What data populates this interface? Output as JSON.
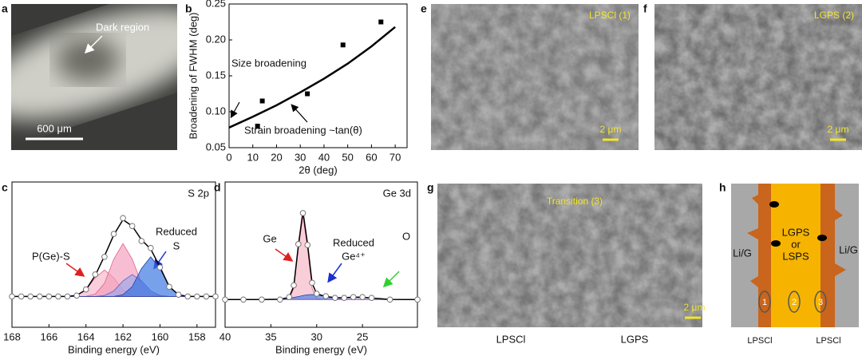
{
  "panel_labels": [
    "a",
    "b",
    "c",
    "d",
    "e",
    "f",
    "g",
    "h"
  ],
  "panel_a": {
    "annotation": "Dark region",
    "scale_bar": "600 μm"
  },
  "panel_e": {
    "label": "LPSCl (1)",
    "scale_bar": "2 μm"
  },
  "panel_f": {
    "label": "LGPS (2)",
    "scale_bar": "2 μm"
  },
  "panel_g": {
    "label": "Transition (3)",
    "scale_bar": "2 μm",
    "x_labels": [
      "LPSCl",
      "LGPS"
    ]
  },
  "panel_h": {
    "center": [
      "LGPS",
      "or",
      "LSPS"
    ],
    "sides": [
      "Li/G",
      "Li/G"
    ],
    "markers": [
      "1",
      "2",
      "3"
    ],
    "bottom": [
      "LPSCl",
      "LPSCl"
    ]
  },
  "chart_data": [
    {
      "type": "scatter",
      "xlabel": "2θ (deg)",
      "ylabel": "Broadening of FWHM (deg)",
      "annotations": [
        "Size broadening",
        "Strain broadening ~tan(θ)"
      ],
      "xlim": [
        0,
        75
      ],
      "xticks": [
        0,
        10,
        20,
        30,
        40,
        50,
        60,
        70
      ],
      "ylim": [
        0.05,
        0.25
      ],
      "yticks": [
        0.05,
        {
          "value": 0.1,
          "label": "0.10"
        },
        0.15,
        {
          "value": 0.2,
          "label": "0.20"
        },
        0.25
      ],
      "series": [
        {
          "marker": "square",
          "color": "#000000",
          "x": [
            12,
            14,
            33,
            48,
            64
          ],
          "values": [
            0.08,
            0.115,
            0.125,
            0.193,
            0.225
          ]
        },
        {
          "color": "#000000",
          "x": [
            0,
            10,
            20,
            30,
            40,
            50,
            60,
            70
          ],
          "values": [
            0.078,
            0.093,
            0.109,
            0.127,
            0.146,
            0.167,
            0.191,
            0.218
          ]
        }
      ]
    },
    {
      "type": "line",
      "title": "S 2p",
      "xlabel": "Binding energy (eV)",
      "annotations": [
        "P(Ge)-S",
        "Reduced",
        "S"
      ],
      "xlim": [
        168,
        157
      ],
      "xticks": [
        168,
        166,
        164,
        162,
        160,
        158
      ],
      "ylim": [
        -35,
        130
      ],
      "x": [
        168,
        167.5,
        167,
        166.5,
        166,
        165.5,
        165,
        164.5,
        164,
        163.5,
        163,
        162.5,
        162,
        161.5,
        161,
        160.5,
        160,
        159.5,
        159,
        158.5,
        158,
        157.5,
        157
      ],
      "series": [
        {
          "color": "#e0608a",
          "fill": "#f7b3c8",
          "values": [
            0,
            0,
            0,
            0,
            0,
            0,
            0,
            1.3,
            7.5,
            21.2,
            30,
            21.2,
            7.5,
            1.3,
            0,
            0,
            0,
            0,
            0,
            0,
            0,
            0,
            0
          ]
        },
        {
          "color": "#e0608a",
          "fill": "#f29bbb",
          "values": [
            0,
            0,
            0,
            0,
            0,
            0,
            0,
            0,
            0.2,
            2.6,
            14.9,
            42.4,
            60,
            42.4,
            14.9,
            2.6,
            0.2,
            0,
            0,
            0,
            0,
            0,
            0
          ]
        },
        {
          "color": "#5a5fc0",
          "fill": "#9aa6ea",
          "values": [
            0,
            0,
            0,
            0,
            0,
            0,
            0,
            0,
            0,
            0,
            1.1,
            6.2,
            17.7,
            25,
            17.7,
            6.2,
            1.1,
            0,
            0,
            0,
            0,
            0,
            0
          ]
        },
        {
          "color": "#1e3fa8",
          "fill": "#2f6fe0",
          "values": [
            0,
            0,
            0,
            0,
            0,
            0,
            0,
            0,
            0,
            0,
            0,
            0,
            2,
            11.2,
            31.8,
            45,
            31.8,
            11.2,
            2,
            0,
            0,
            0,
            0
          ]
        },
        {
          "color": "#000000",
          "values": [
            0,
            0,
            0,
            0,
            0,
            0,
            0,
            1.3,
            7.7,
            23.8,
            46,
            69.8,
            87.2,
            79.9,
            64.4,
            53.8,
            33.3,
            11.2,
            2,
            0,
            0,
            0,
            0
          ]
        },
        {
          "marker": "circle",
          "color": "#777777",
          "values": [
            0,
            0,
            0,
            0,
            0,
            0,
            0,
            1,
            8,
            25,
            45,
            71,
            89,
            80,
            63,
            55,
            33,
            11,
            2,
            0,
            0,
            0,
            0
          ]
        }
      ]
    },
    {
      "type": "line",
      "title": "Ge 3d",
      "xlabel": "Binding energy (eV)",
      "annotations": [
        "Ge",
        "Reduced",
        "Ge⁴⁺",
        "O"
      ],
      "xlim": [
        40,
        19
      ],
      "xticks": [
        40,
        35,
        30,
        25
      ],
      "ylim": [
        -33,
        140
      ],
      "x": [
        40,
        38,
        36,
        34,
        33,
        32.5,
        32,
        31.5,
        31,
        30.5,
        30,
        29,
        28,
        27,
        26,
        25,
        24,
        22,
        19
      ],
      "series": [
        {
          "color": "#e0608a",
          "fill": "#f5b5c5",
          "values": [
            0,
            0,
            0,
            0,
            1.1,
            13.5,
            60.7,
            100,
            60.7,
            13.5,
            1.1,
            0,
            0,
            0,
            0,
            0,
            0,
            0,
            0
          ]
        },
        {
          "color": "#1e3fa8",
          "fill": "#4a7be0",
          "values": [
            0,
            0,
            0,
            0.4,
            1.5,
            2.5,
            3.6,
            4.8,
            5.7,
            6,
            5.7,
            3.6,
            1.5,
            0.4,
            0.1,
            0,
            0,
            0,
            0
          ]
        },
        {
          "color": "#9a6ac8",
          "fill": "#c9a6e6",
          "values": [
            0,
            0,
            0,
            0,
            0,
            0,
            0,
            0,
            0,
            0,
            0,
            0,
            0.8,
            1.8,
            2.8,
            2.8,
            1.8,
            0.2,
            0
          ]
        },
        {
          "color": "#000000",
          "values": [
            0,
            0,
            0,
            0.4,
            2.6,
            16,
            64.3,
            104.8,
            66.4,
            19.5,
            6.8,
            3.6,
            2.3,
            2.2,
            2.9,
            2.8,
            1.8,
            0.2,
            0
          ]
        },
        {
          "marker": "circle",
          "color": "#777777",
          "values": [
            0,
            0,
            0,
            0,
            3,
            17,
            66,
            103,
            65,
            20,
            7,
            4,
            2,
            2,
            3,
            3,
            2,
            0,
            0
          ]
        }
      ]
    }
  ]
}
